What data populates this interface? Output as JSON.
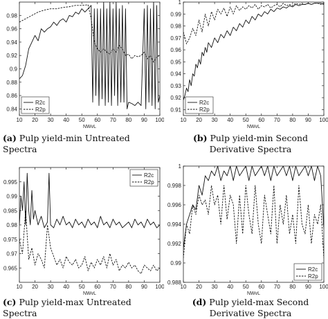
{
  "captions": [
    {
      "tag": "(a)",
      "text": "Pulp yield-min Untreated Spectra"
    },
    {
      "tag": "(b)",
      "text": "Pulp yield-min Second Derivative Spectra"
    },
    {
      "tag": "(c)",
      "text": "Pulp yield-max Untreated Spectra"
    },
    {
      "tag": "(d)",
      "text": "Pulp yield-max Second Derivative Spectra"
    }
  ],
  "chart_data": [
    {
      "type": "line",
      "xlabel": "NWvL",
      "xlim": [
        10,
        100
      ],
      "ylim": [
        0.83,
        1.0
      ],
      "xticks": [
        10,
        20,
        30,
        40,
        50,
        60,
        70,
        80,
        90,
        100
      ],
      "yticks": [
        0.84,
        0.86,
        0.88,
        0.9,
        0.92,
        0.94,
        0.96,
        0.98
      ],
      "legend_position": "bottom-left",
      "series": [
        {
          "name": "R2c",
          "style": "solid",
          "x": [
            10,
            12,
            14,
            16,
            18,
            20,
            22,
            24,
            26,
            28,
            30,
            32,
            34,
            36,
            38,
            40,
            42,
            44,
            46,
            48,
            50,
            52,
            54,
            56,
            57,
            58,
            59,
            60,
            61,
            62,
            63,
            64,
            65,
            66,
            67,
            68,
            69,
            70,
            71,
            72,
            73,
            74,
            75,
            76,
            77,
            78,
            79,
            80,
            82,
            84,
            86,
            88,
            90,
            91,
            92,
            93,
            94,
            95,
            96,
            97,
            98,
            99,
            100
          ],
          "y": [
            0.885,
            0.89,
            0.905,
            0.93,
            0.94,
            0.95,
            0.942,
            0.96,
            0.955,
            0.96,
            0.963,
            0.97,
            0.965,
            0.972,
            0.975,
            0.97,
            0.98,
            0.978,
            0.985,
            0.982,
            0.99,
            0.985,
            0.99,
            0.995,
            0.85,
            0.99,
            0.86,
            0.99,
            0.845,
            0.99,
            0.855,
            1.0,
            0.845,
            0.99,
            0.85,
            1.0,
            0.845,
            0.99,
            0.86,
            1.0,
            0.845,
            0.99,
            0.85,
            0.995,
            0.85,
            0.99,
            0.84,
            0.85,
            0.848,
            0.845,
            0.85,
            0.845,
            0.99,
            0.84,
            0.995,
            0.85,
            0.99,
            0.845,
            1.0,
            0.84,
            0.995,
            0.85,
            0.86
          ]
        },
        {
          "name": "R2p",
          "style": "dashed",
          "x": [
            10,
            14,
            18,
            22,
            26,
            30,
            34,
            38,
            42,
            46,
            50,
            54,
            56,
            58,
            60,
            62,
            64,
            66,
            68,
            70,
            72,
            74,
            76,
            78,
            80,
            82,
            84,
            86,
            88,
            90,
            92,
            94,
            96,
            98,
            100
          ],
          "y": [
            0.97,
            0.975,
            0.98,
            0.985,
            0.988,
            0.99,
            0.99,
            0.992,
            0.993,
            0.995,
            0.995,
            0.996,
            0.975,
            0.94,
            0.93,
            0.925,
            0.93,
            0.925,
            0.922,
            0.93,
            0.925,
            0.935,
            0.93,
            0.92,
            0.922,
            0.915,
            0.92,
            0.918,
            0.92,
            0.925,
            0.915,
            0.92,
            0.91,
            0.918,
            0.92
          ]
        }
      ]
    },
    {
      "type": "line",
      "xlabel": "NWvL",
      "xlim": [
        10,
        100
      ],
      "ylim": [
        0.905,
        1.0
      ],
      "xticks": [
        10,
        20,
        30,
        40,
        50,
        60,
        70,
        80,
        90,
        100
      ],
      "yticks": [
        0.91,
        0.92,
        0.93,
        0.94,
        0.95,
        0.96,
        0.97,
        0.98,
        0.99,
        1
      ],
      "legend_position": "bottom-left",
      "series": [
        {
          "name": "R2c",
          "style": "solid",
          "x": [
            10,
            11,
            12,
            13,
            14,
            15,
            16,
            17,
            18,
            19,
            20,
            21,
            22,
            23,
            24,
            25,
            26,
            28,
            30,
            32,
            34,
            36,
            38,
            40,
            42,
            44,
            46,
            48,
            50,
            52,
            54,
            56,
            58,
            60,
            62,
            64,
            66,
            68,
            70,
            72,
            74,
            76,
            78,
            80,
            82,
            84,
            86,
            88,
            90,
            92,
            94,
            96,
            98,
            100
          ],
          "y": [
            0.918,
            0.922,
            0.928,
            0.925,
            0.935,
            0.93,
            0.94,
            0.938,
            0.948,
            0.945,
            0.952,
            0.948,
            0.958,
            0.955,
            0.962,
            0.958,
            0.966,
            0.962,
            0.97,
            0.966,
            0.973,
            0.97,
            0.976,
            0.972,
            0.979,
            0.976,
            0.982,
            0.979,
            0.985,
            0.982,
            0.988,
            0.985,
            0.99,
            0.988,
            0.992,
            0.99,
            0.994,
            0.992,
            0.995,
            0.994,
            0.996,
            0.995,
            0.997,
            0.996,
            0.998,
            0.997,
            0.998,
            0.998,
            0.999,
            0.998,
            0.999,
            0.999,
            0.999,
            0.998
          ]
        },
        {
          "name": "R2p",
          "style": "dashed",
          "x": [
            10,
            12,
            14,
            16,
            18,
            20,
            22,
            24,
            26,
            28,
            30,
            32,
            34,
            36,
            38,
            40,
            42,
            44,
            46,
            48,
            50,
            52,
            54,
            56,
            58,
            60,
            62,
            64,
            66,
            68,
            70,
            72,
            74,
            76,
            78,
            80,
            82,
            84,
            86,
            88,
            90,
            92,
            94,
            96,
            98,
            100
          ],
          "y": [
            0.975,
            0.965,
            0.97,
            0.978,
            0.972,
            0.985,
            0.975,
            0.99,
            0.98,
            0.992,
            0.985,
            0.994,
            0.99,
            0.995,
            0.988,
            0.996,
            0.99,
            0.997,
            0.993,
            0.996,
            0.994,
            0.997,
            0.995,
            0.998,
            0.994,
            0.997,
            0.996,
            0.998,
            0.995,
            0.997,
            0.998,
            0.996,
            0.999,
            0.997,
            0.998,
            0.997,
            0.999,
            0.998,
            0.999,
            0.998,
            0.999,
            0.998,
            0.999,
            0.999,
            0.998,
            0.999
          ]
        }
      ]
    },
    {
      "type": "line",
      "xlabel": "NWvL",
      "xlim": [
        10,
        100
      ],
      "ylim": [
        0.96,
        1.0
      ],
      "xticks": [
        10,
        20,
        30,
        40,
        50,
        60,
        70,
        80,
        90,
        100
      ],
      "yticks": [
        0.965,
        0.97,
        0.975,
        0.98,
        0.985,
        0.99,
        0.995
      ],
      "legend_position": "top-right",
      "series": [
        {
          "name": "R2c",
          "style": "solid",
          "x": [
            10,
            11,
            12,
            13,
            14,
            15,
            16,
            17,
            18,
            19,
            20,
            22,
            24,
            26,
            28,
            29,
            30,
            32,
            34,
            36,
            38,
            40,
            42,
            44,
            46,
            48,
            50,
            52,
            54,
            56,
            58,
            60,
            62,
            64,
            66,
            68,
            70,
            72,
            74,
            76,
            78,
            80,
            82,
            84,
            86,
            88,
            90,
            92,
            94,
            96,
            98,
            100
          ],
          "y": [
            0.98,
            0.99,
            0.985,
            0.995,
            0.98,
            0.998,
            0.985,
            0.98,
            0.992,
            0.982,
            0.985,
            0.98,
            0.983,
            0.979,
            0.981,
            0.998,
            0.98,
            0.979,
            0.982,
            0.98,
            0.983,
            0.98,
            0.981,
            0.979,
            0.982,
            0.98,
            0.981,
            0.979,
            0.982,
            0.98,
            0.981,
            0.979,
            0.983,
            0.98,
            0.981,
            0.979,
            0.982,
            0.98,
            0.981,
            0.979,
            0.98,
            0.981,
            0.979,
            0.982,
            0.98,
            0.981,
            0.979,
            0.982,
            0.98,
            0.981,
            0.979,
            0.98
          ]
        },
        {
          "name": "R2p",
          "style": "dashed",
          "x": [
            10,
            12,
            14,
            16,
            18,
            20,
            22,
            24,
            26,
            28,
            30,
            32,
            34,
            36,
            38,
            40,
            42,
            44,
            46,
            48,
            50,
            52,
            54,
            56,
            58,
            60,
            62,
            64,
            66,
            68,
            70,
            72,
            74,
            76,
            78,
            80,
            82,
            84,
            86,
            88,
            90,
            92,
            94,
            96,
            98,
            100
          ],
          "y": [
            0.975,
            0.97,
            0.985,
            0.968,
            0.972,
            0.966,
            0.97,
            0.968,
            0.965,
            0.98,
            0.972,
            0.969,
            0.966,
            0.968,
            0.965,
            0.969,
            0.967,
            0.966,
            0.968,
            0.965,
            0.966,
            0.969,
            0.964,
            0.967,
            0.965,
            0.968,
            0.966,
            0.969,
            0.965,
            0.97,
            0.966,
            0.968,
            0.964,
            0.966,
            0.965,
            0.967,
            0.965,
            0.966,
            0.964,
            0.963,
            0.966,
            0.965,
            0.964,
            0.966,
            0.964,
            0.965
          ]
        }
      ]
    },
    {
      "type": "line",
      "xlabel": "NWvL",
      "xlim": [
        10,
        100
      ],
      "ylim": [
        0.988,
        1.0
      ],
      "xticks": [
        10,
        20,
        30,
        40,
        50,
        60,
        70,
        80,
        90,
        100
      ],
      "yticks": [
        0.988,
        0.99,
        0.992,
        0.994,
        0.996,
        0.998,
        1
      ],
      "legend_position": "bottom-right",
      "series": [
        {
          "name": "R2c",
          "style": "solid",
          "x": [
            10,
            12,
            14,
            16,
            18,
            20,
            22,
            24,
            26,
            28,
            30,
            32,
            34,
            36,
            38,
            40,
            42,
            44,
            46,
            48,
            50,
            52,
            54,
            56,
            58,
            60,
            62,
            64,
            66,
            68,
            70,
            72,
            74,
            76,
            78,
            80,
            82,
            84,
            86,
            88,
            90,
            92,
            94,
            96,
            98,
            100
          ],
          "y": [
            0.9915,
            0.994,
            0.995,
            0.996,
            0.9955,
            0.998,
            0.997,
            0.999,
            0.9985,
            0.9995,
            0.999,
            1.0,
            0.9985,
            0.9995,
            0.999,
            1.0,
            0.9985,
            1.0,
            0.999,
            0.9995,
            1.0,
            0.9985,
            1.0,
            0.999,
            0.9995,
            1.0,
            0.999,
            1.0,
            0.9985,
            1.0,
            0.999,
            0.9995,
            1.0,
            0.999,
            1.0,
            0.9985,
            1.0,
            0.999,
            0.9995,
            1.0,
            0.999,
            1.0,
            0.9985,
            1.0,
            0.999,
            0.9935
          ]
        },
        {
          "name": "R2p",
          "style": "dashed",
          "x": [
            10,
            12,
            14,
            16,
            18,
            20,
            22,
            24,
            26,
            28,
            30,
            32,
            34,
            36,
            38,
            40,
            42,
            44,
            46,
            48,
            50,
            52,
            54,
            56,
            58,
            60,
            62,
            64,
            66,
            68,
            70,
            72,
            74,
            76,
            78,
            80,
            82,
            84,
            86,
            88,
            90,
            92,
            94,
            96,
            98,
            100
          ],
          "y": [
            0.9905,
            0.994,
            0.993,
            0.996,
            0.995,
            0.997,
            0.996,
            0.9965,
            0.995,
            0.998,
            0.996,
            0.997,
            0.994,
            0.998,
            0.9945,
            0.997,
            0.996,
            0.992,
            0.997,
            0.993,
            0.998,
            0.995,
            0.993,
            0.998,
            0.994,
            0.992,
            0.997,
            0.995,
            0.993,
            0.998,
            0.992,
            0.996,
            0.994,
            0.997,
            0.993,
            0.995,
            0.992,
            0.998,
            0.994,
            0.993,
            0.996,
            0.992,
            0.995,
            0.994,
            0.996,
            0.9905
          ]
        }
      ]
    }
  ]
}
